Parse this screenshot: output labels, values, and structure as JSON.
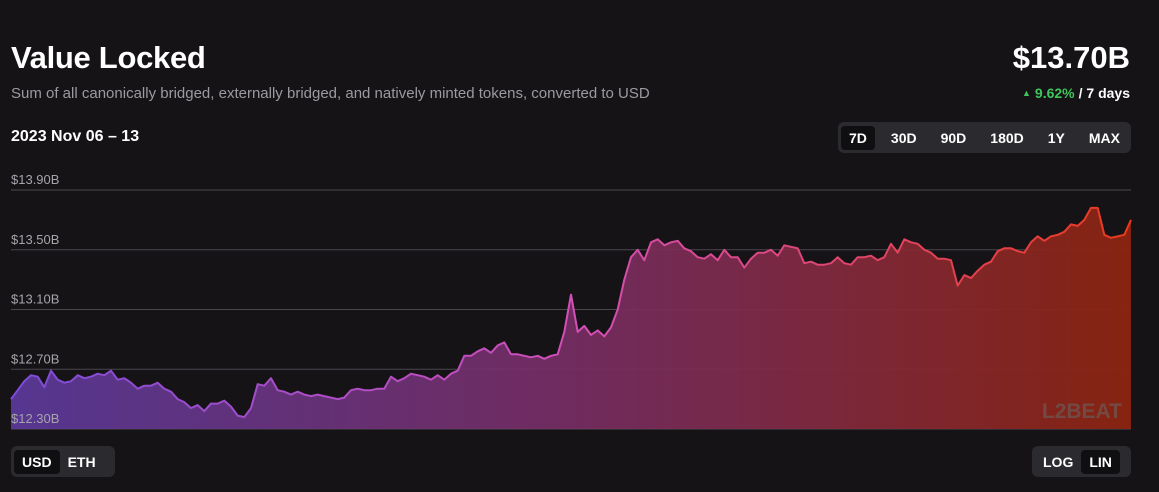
{
  "header": {
    "title": "Value Locked",
    "subtitle": "Sum of all canonically bridged, externally bridged, and natively minted tokens, converted to USD",
    "value": "$13.70B",
    "change_pct": "9.62%",
    "change_period": "/ 7 days",
    "change_direction": "up"
  },
  "date_range": "2023 Nov 06 – 13",
  "timeframes": [
    {
      "label": "7D",
      "active": true
    },
    {
      "label": "30D",
      "active": false
    },
    {
      "label": "90D",
      "active": false
    },
    {
      "label": "180D",
      "active": false
    },
    {
      "label": "1Y",
      "active": false
    },
    {
      "label": "MAX",
      "active": false
    }
  ],
  "unit_toggle": [
    {
      "label": "USD",
      "active": true
    },
    {
      "label": "ETH",
      "active": false
    }
  ],
  "scale_toggle": [
    {
      "label": "LOG",
      "active": false
    },
    {
      "label": "LIN",
      "active": true
    }
  ],
  "watermark": "L2BEAT",
  "colors": {
    "positive": "#3fc55a",
    "gradient_start": "#7d4bd8",
    "gradient_mid": "#d24fb8",
    "gradient_end": "#ec3a1f"
  },
  "chart_data": {
    "type": "area",
    "title": "",
    "xlabel": "",
    "ylabel": "",
    "x_range": [
      "2023-11-06",
      "2023-11-13"
    ],
    "ylim": [
      12.3,
      13.9
    ],
    "yticks": [
      12.3,
      12.7,
      13.1,
      13.5,
      13.9
    ],
    "ytick_labels": [
      "$12.30B",
      "$12.70B",
      "$13.10B",
      "$13.50B",
      "$13.90B"
    ],
    "grid": true,
    "unit": "USD billions",
    "series": [
      {
        "values": [
          12.5,
          12.56,
          12.62,
          12.66,
          12.65,
          12.58,
          12.69,
          12.63,
          12.61,
          12.62,
          12.66,
          12.64,
          12.65,
          12.67,
          12.66,
          12.69,
          12.63,
          12.64,
          12.61,
          12.57,
          12.59,
          12.59,
          12.61,
          12.57,
          12.55,
          12.5,
          12.48,
          12.44,
          12.46,
          12.42,
          12.47,
          12.47,
          12.49,
          12.45,
          12.39,
          12.38,
          12.44,
          12.6,
          12.59,
          12.64,
          12.56,
          12.55,
          12.53,
          12.55,
          12.53,
          12.52,
          12.53,
          12.52,
          12.51,
          12.5,
          12.51,
          12.56,
          12.57,
          12.56,
          12.56,
          12.57,
          12.57,
          12.65,
          12.62,
          12.64,
          12.67,
          12.66,
          12.65,
          12.63,
          12.66,
          12.63,
          12.67,
          12.69,
          12.79,
          12.79,
          12.82,
          12.84,
          12.81,
          12.86,
          12.88,
          12.8,
          12.8,
          12.79,
          12.78,
          12.79,
          12.77,
          12.79,
          12.8,
          12.95,
          13.2,
          12.95,
          12.99,
          12.93,
          12.96,
          12.92,
          12.98,
          13.1,
          13.3,
          13.45,
          13.5,
          13.43,
          13.55,
          13.57,
          13.53,
          13.55,
          13.56,
          13.51,
          13.49,
          13.45,
          13.44,
          13.47,
          13.43,
          13.5,
          13.45,
          13.45,
          13.38,
          13.44,
          13.48,
          13.48,
          13.5,
          13.46,
          13.53,
          13.52,
          13.51,
          13.41,
          13.42,
          13.4,
          13.4,
          13.41,
          13.45,
          13.41,
          13.4,
          13.45,
          13.45,
          13.46,
          13.43,
          13.45,
          13.54,
          13.48,
          13.57,
          13.55,
          13.54,
          13.5,
          13.48,
          13.44,
          13.44,
          13.43,
          13.26,
          13.33,
          13.31,
          13.36,
          13.4,
          13.42,
          13.49,
          13.51,
          13.51,
          13.49,
          13.48,
          13.55,
          13.59,
          13.56,
          13.59,
          13.6,
          13.62,
          13.67,
          13.66,
          13.7,
          13.78,
          13.78,
          13.6,
          13.58,
          13.59,
          13.6,
          13.7
        ]
      }
    ]
  }
}
